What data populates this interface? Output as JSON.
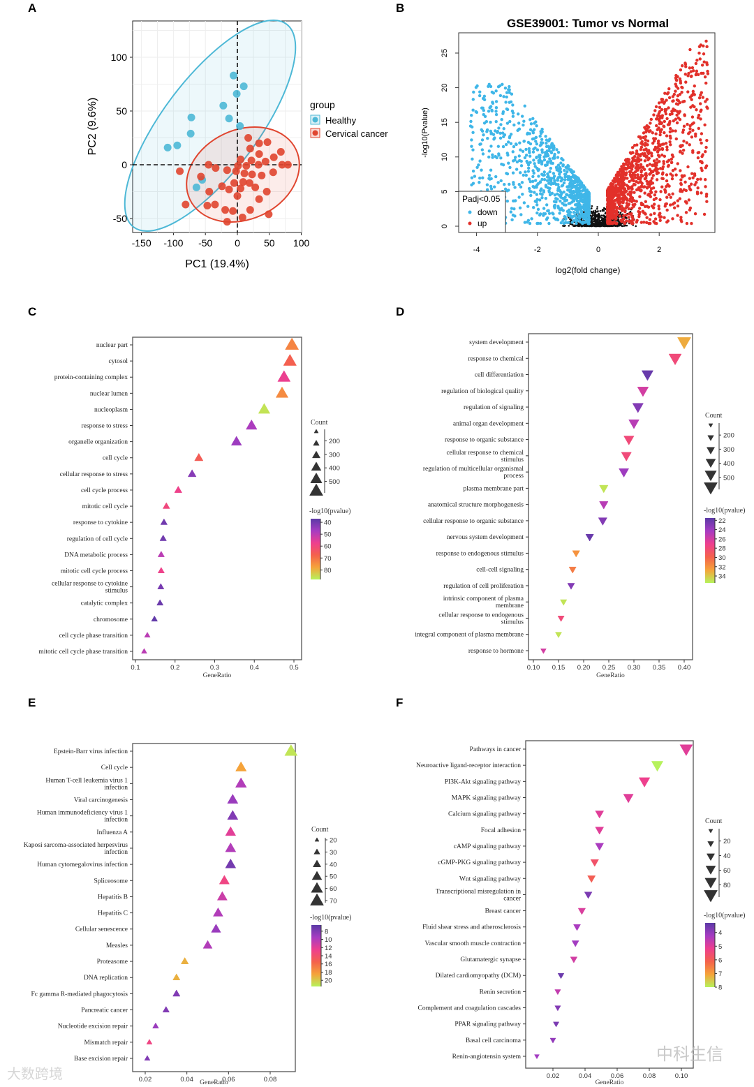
{
  "panel_letters": [
    "A",
    "B",
    "C",
    "D",
    "E",
    "F"
  ],
  "watermarks": {
    "left": "大数跨境",
    "right": "中科生信"
  },
  "colors": {
    "healthy": "#4db8d6",
    "cancer": "#e0452f",
    "down": "#3fb6e8",
    "up": "#e2302a",
    "ns": "#111111",
    "gradient": [
      "#5b3aa6",
      "#a63cc2",
      "#ee3f8e",
      "#f4624c",
      "#f5a33a",
      "#b6f25c"
    ]
  },
  "chart_data": [
    {
      "id": "A",
      "type": "scatter",
      "xlabel": "PC1 (19.4%)",
      "ylabel": "PC2 (9.6%)",
      "xlim": [
        -160,
        110
      ],
      "ylim": [
        -62,
        135
      ],
      "xticks": [
        -150,
        -100,
        -50,
        0,
        50,
        100
      ],
      "yticks": [
        -50,
        0,
        50,
        100
      ],
      "legend": {
        "title": "group",
        "entries": [
          "Healthy",
          "Cervical cancer"
        ],
        "placement": "right"
      },
      "series": [
        {
          "name": "Healthy",
          "points": [
            [
              -6,
              83
            ],
            [
              10,
              73
            ],
            [
              -1,
              66
            ],
            [
              -22,
              55
            ],
            [
              -13,
              43
            ],
            [
              -72,
              44
            ],
            [
              4,
              36
            ],
            [
              -73,
              29
            ],
            [
              -94,
              18
            ],
            [
              -109,
              16
            ],
            [
              -55,
              -14
            ],
            [
              -64,
              -21
            ]
          ]
        },
        {
          "name": "Cervical cancer",
          "points": [
            [
              17,
              25
            ],
            [
              34,
              20
            ],
            [
              47,
              21
            ],
            [
              20,
              15
            ],
            [
              68,
              12
            ],
            [
              34,
              10
            ],
            [
              57,
              7
            ],
            [
              5,
              5
            ],
            [
              22,
              4
            ],
            [
              70,
              0
            ],
            [
              1,
              -1
            ],
            [
              14,
              -1
            ],
            [
              33,
              0
            ],
            [
              44,
              3
            ],
            [
              79,
              0
            ],
            [
              -90,
              -6
            ],
            [
              -45,
              0
            ],
            [
              -34,
              -3
            ],
            [
              -16,
              -5
            ],
            [
              -2,
              -6
            ],
            [
              11,
              -8
            ],
            [
              23,
              -9
            ],
            [
              38,
              -10
            ],
            [
              56,
              -7
            ],
            [
              9,
              -16
            ],
            [
              19,
              -17
            ],
            [
              -57,
              -11
            ],
            [
              -5,
              -17
            ],
            [
              -24,
              -20
            ],
            [
              5,
              -22
            ],
            [
              -13,
              -23
            ],
            [
              28,
              -21
            ],
            [
              46,
              -25
            ],
            [
              -44,
              -25
            ],
            [
              34,
              -32
            ],
            [
              -81,
              -37
            ],
            [
              -47,
              -38
            ],
            [
              -19,
              -42
            ],
            [
              -7,
              -43
            ],
            [
              20,
              -42
            ],
            [
              49,
              -46
            ],
            [
              8,
              -49
            ],
            [
              -16,
              -53
            ],
            [
              -35,
              -37
            ],
            [
              0,
              -29
            ]
          ]
        }
      ]
    },
    {
      "id": "B",
      "type": "scatter",
      "title": "GSE39001: Tumor vs Normal",
      "xlabel": "log2(fold change)",
      "ylabel": "-log10(Pvalue)",
      "xlim": [
        -4.6,
        3.8
      ],
      "ylim": [
        -1,
        28
      ],
      "xticks": [
        -4,
        -2,
        0,
        2
      ],
      "yticks": [
        0,
        5,
        10,
        15,
        20,
        25
      ],
      "legend": {
        "title": "Padj<0.05",
        "entries": [
          "down",
          "up"
        ],
        "placement": "bottom-left"
      },
      "approx_counts": {
        "down": 900,
        "up": 1100,
        "not_significant": 700
      }
    },
    {
      "id": "C",
      "type": "scatter",
      "shape": "triangle-up",
      "xlabel": "GeneRatio",
      "xticks": [
        "0.1",
        "0.2",
        "0.3",
        "0.4",
        "0.5"
      ],
      "xlim": [
        0.09,
        0.52
      ],
      "count_legend": {
        "title": "Count",
        "ticks": [
          "200",
          "300",
          "400",
          "500"
        ]
      },
      "color_legend": {
        "title": "-log10(pvalue)",
        "ticks": [
          "40",
          "50",
          "60",
          "70",
          "80"
        ],
        "range": [
          37,
          88
        ]
      },
      "rows": [
        {
          "term": "nuclear part",
          "ratio": 0.495,
          "count": 560,
          "p": 73
        },
        {
          "term": "cytosol",
          "ratio": 0.49,
          "count": 540,
          "p": 67
        },
        {
          "term": "protein-containing complex",
          "ratio": 0.475,
          "count": 520,
          "p": 57
        },
        {
          "term": "nuclear lumen",
          "ratio": 0.47,
          "count": 500,
          "p": 74
        },
        {
          "term": "nucleoplasm",
          "ratio": 0.425,
          "count": 460,
          "p": 86
        },
        {
          "term": "response to stress",
          "ratio": 0.393,
          "count": 430,
          "p": 48
        },
        {
          "term": "organelle organization",
          "ratio": 0.355,
          "count": 400,
          "p": 46
        },
        {
          "term": "cell cycle",
          "ratio": 0.26,
          "count": 300,
          "p": 66
        },
        {
          "term": "cellular response to stress",
          "ratio": 0.243,
          "count": 280,
          "p": 43
        },
        {
          "term": "cell cycle process",
          "ratio": 0.208,
          "count": 240,
          "p": 58
        },
        {
          "term": "mitotic cell cycle",
          "ratio": 0.178,
          "count": 210,
          "p": 60
        },
        {
          "term": "response to cytokine",
          "ratio": 0.172,
          "count": 200,
          "p": 40
        },
        {
          "term": "regulation of cell cycle",
          "ratio": 0.17,
          "count": 195,
          "p": 40
        },
        {
          "term": "DNA metabolic process",
          "ratio": 0.165,
          "count": 190,
          "p": 50
        },
        {
          "term": "mitotic cell cycle process",
          "ratio": 0.165,
          "count": 190,
          "p": 58
        },
        {
          "term": "cellular response to cytokine\nstimulus",
          "ratio": 0.164,
          "count": 185,
          "p": 41
        },
        {
          "term": "catalytic complex",
          "ratio": 0.162,
          "count": 185,
          "p": 39
        },
        {
          "term": "chromosome",
          "ratio": 0.148,
          "count": 170,
          "p": 38
        },
        {
          "term": "cell cycle phase transition",
          "ratio": 0.13,
          "count": 150,
          "p": 50
        },
        {
          "term": "mitotic cell cycle phase transition",
          "ratio": 0.122,
          "count": 140,
          "p": 50
        }
      ]
    },
    {
      "id": "D",
      "type": "scatter",
      "shape": "triangle-down",
      "xlabel": "GeneRatio",
      "xticks": [
        "0.10",
        "0.15",
        "0.20",
        "0.25",
        "0.30",
        "0.35",
        "0.40"
      ],
      "xlim": [
        0.095,
        0.425
      ],
      "count_legend": {
        "title": "Count",
        "ticks": [
          "200",
          "300",
          "400",
          "500"
        ]
      },
      "color_legend": {
        "title": "-log10(pvalue)",
        "ticks": [
          "22",
          "24",
          "26",
          "28",
          "30",
          "32",
          "34"
        ],
        "range": [
          21.5,
          35.5
        ]
      },
      "rows": [
        {
          "term": "system development",
          "ratio": 0.4,
          "count": 560,
          "p": 33
        },
        {
          "term": "response to chemical",
          "ratio": 0.382,
          "count": 520,
          "p": 28
        },
        {
          "term": "cell differentiation",
          "ratio": 0.327,
          "count": 460,
          "p": 22
        },
        {
          "term": "regulation of biological quality",
          "ratio": 0.318,
          "count": 440,
          "p": 26
        },
        {
          "term": "regulation of signaling",
          "ratio": 0.308,
          "count": 430,
          "p": 23
        },
        {
          "term": "animal organ development",
          "ratio": 0.3,
          "count": 410,
          "p": 25
        },
        {
          "term": "response to organic substance",
          "ratio": 0.29,
          "count": 400,
          "p": 28
        },
        {
          "term": "cellular response to chemical\nstimulus",
          "ratio": 0.285,
          "count": 390,
          "p": 28
        },
        {
          "term": "regulation of multicellular organismal\nprocess",
          "ratio": 0.28,
          "count": 380,
          "p": 24
        },
        {
          "term": "plasma membrane part",
          "ratio": 0.24,
          "count": 320,
          "p": 35
        },
        {
          "term": "anatomical structure morphogenesis",
          "ratio": 0.24,
          "count": 320,
          "p": 25
        },
        {
          "term": "cellular response to organic substance",
          "ratio": 0.238,
          "count": 320,
          "p": 23
        },
        {
          "term": "nervous system development",
          "ratio": 0.212,
          "count": 280,
          "p": 22
        },
        {
          "term": "response to endogenous stimulus",
          "ratio": 0.185,
          "count": 250,
          "p": 32
        },
        {
          "term": "cell-cell signaling",
          "ratio": 0.178,
          "count": 240,
          "p": 31
        },
        {
          "term": "regulation of cell proliferation",
          "ratio": 0.175,
          "count": 235,
          "p": 23
        },
        {
          "term": "intrinsic component of plasma\nmembrane",
          "ratio": 0.16,
          "count": 210,
          "p": 35
        },
        {
          "term": "cellular response to endogenous\nstimulus",
          "ratio": 0.155,
          "count": 205,
          "p": 28
        },
        {
          "term": "integral component of plasma membrane",
          "ratio": 0.15,
          "count": 200,
          "p": 35
        },
        {
          "term": "response to hormone",
          "ratio": 0.12,
          "count": 160,
          "p": 26
        }
      ]
    },
    {
      "id": "E",
      "type": "scatter",
      "shape": "triangle-up",
      "xlabel": "GeneRatio",
      "xticks": [
        "0.02",
        "0.04",
        "0.06",
        "0.08"
      ],
      "xlim": [
        0.014,
        0.095
      ],
      "count_legend": {
        "title": "Count",
        "ticks": [
          "20",
          "30",
          "40",
          "50",
          "60",
          "70"
        ]
      },
      "color_legend": {
        "title": "-log10(pvalue)",
        "ticks": [
          "8",
          "10",
          "12",
          "14",
          "16",
          "18",
          "20"
        ],
        "range": [
          6.5,
          21.5
        ]
      },
      "rows": [
        {
          "term": "Epstein-Barr virus infection",
          "ratio": 0.09,
          "count": 72,
          "p": 21
        },
        {
          "term": "Cell cycle",
          "ratio": 0.066,
          "count": 58,
          "p": 18.5
        },
        {
          "term": "Human T-cell leukemia virus 1\ninfection",
          "ratio": 0.066,
          "count": 60,
          "p": 10
        },
        {
          "term": "Viral carcinogenesis",
          "ratio": 0.062,
          "count": 56,
          "p": 9
        },
        {
          "term": "Human immunodeficiency virus 1\ninfection",
          "ratio": 0.062,
          "count": 56,
          "p": 8
        },
        {
          "term": "Influenza A",
          "ratio": 0.061,
          "count": 54,
          "p": 12
        },
        {
          "term": "Kaposi sarcoma-associated herpesvirus\ninfection",
          "ratio": 0.061,
          "count": 55,
          "p": 10
        },
        {
          "term": "Human cytomegalovirus infection",
          "ratio": 0.061,
          "count": 55,
          "p": 7.5
        },
        {
          "term": "Spliceosome",
          "ratio": 0.058,
          "count": 52,
          "p": 13
        },
        {
          "term": "Hepatitis B",
          "ratio": 0.057,
          "count": 51,
          "p": 11
        },
        {
          "term": "Hepatitis C",
          "ratio": 0.055,
          "count": 50,
          "p": 10
        },
        {
          "term": "Cellular senescence",
          "ratio": 0.054,
          "count": 48,
          "p": 9
        },
        {
          "term": "Measles",
          "ratio": 0.05,
          "count": 45,
          "p": 10
        },
        {
          "term": "Proteasome",
          "ratio": 0.039,
          "count": 32,
          "p": 19
        },
        {
          "term": "DNA replication",
          "ratio": 0.035,
          "count": 30,
          "p": 19
        },
        {
          "term": "Fc gamma R-mediated phagocytosis",
          "ratio": 0.035,
          "count": 31,
          "p": 8
        },
        {
          "term": "Pancreatic cancer",
          "ratio": 0.03,
          "count": 26,
          "p": 8
        },
        {
          "term": "Nucleotide excision repair",
          "ratio": 0.025,
          "count": 22,
          "p": 9
        },
        {
          "term": "Mismatch repair",
          "ratio": 0.022,
          "count": 18,
          "p": 13
        },
        {
          "term": "Base excision repair",
          "ratio": 0.021,
          "count": 18,
          "p": 8
        }
      ]
    },
    {
      "id": "F",
      "type": "scatter",
      "shape": "triangle-down",
      "xlabel": "GeneRatio",
      "xticks": [
        "0.02",
        "0.04",
        "0.06",
        "0.08",
        "0.10"
      ],
      "xlim": [
        0.003,
        0.111
      ],
      "count_legend": {
        "title": "Count",
        "ticks": [
          "20",
          "40",
          "60",
          "80"
        ]
      },
      "color_legend": {
        "title": "-log10(pvalue)",
        "ticks": [
          "4",
          "5",
          "6",
          "7",
          "8"
        ],
        "range": [
          3.3,
          8.0
        ]
      },
      "rows": [
        {
          "term": "Pathways in cancer",
          "ratio": 0.103,
          "count": 92,
          "p": 5
        },
        {
          "term": "Neuroactive ligand-receptor interaction",
          "ratio": 0.085,
          "count": 80,
          "p": 8
        },
        {
          "term": "PI3K-Akt signaling pathway",
          "ratio": 0.077,
          "count": 74,
          "p": 5.2
        },
        {
          "term": "MAPK signaling pathway",
          "ratio": 0.067,
          "count": 64,
          "p": 5
        },
        {
          "term": "Calcium signaling pathway",
          "ratio": 0.049,
          "count": 48,
          "p": 5
        },
        {
          "term": "Focal adhesion",
          "ratio": 0.049,
          "count": 48,
          "p": 5
        },
        {
          "term": "cAMP signaling pathway",
          "ratio": 0.049,
          "count": 47,
          "p": 4.3
        },
        {
          "term": "cGMP-PKG signaling pathway",
          "ratio": 0.046,
          "count": 44,
          "p": 5.7
        },
        {
          "term": "Wnt signaling pathway",
          "ratio": 0.044,
          "count": 42,
          "p": 6
        },
        {
          "term": "Transcriptional misregulation in\ncancer",
          "ratio": 0.042,
          "count": 40,
          "p": 3.7
        },
        {
          "term": "Breast cancer",
          "ratio": 0.038,
          "count": 37,
          "p": 4.9
        },
        {
          "term": "Fluid shear stress and atherosclerosis",
          "ratio": 0.035,
          "count": 34,
          "p": 4.3
        },
        {
          "term": "Vascular smooth muscle contraction",
          "ratio": 0.034,
          "count": 33,
          "p": 4.2
        },
        {
          "term": "Glutamatergic synapse",
          "ratio": 0.033,
          "count": 32,
          "p": 4.8
        },
        {
          "term": "Dilated cardiomyopathy (DCM)",
          "ratio": 0.025,
          "count": 25,
          "p": 3.5
        },
        {
          "term": "Renin secretion",
          "ratio": 0.023,
          "count": 22,
          "p": 4.6
        },
        {
          "term": "Complement and coagulation cascades",
          "ratio": 0.023,
          "count": 22,
          "p": 3.8
        },
        {
          "term": "PPAR signaling pathway",
          "ratio": 0.022,
          "count": 21,
          "p": 3.7
        },
        {
          "term": "Basal cell carcinoma",
          "ratio": 0.02,
          "count": 20,
          "p": 4
        },
        {
          "term": "Renin-angiotensin system",
          "ratio": 0.01,
          "count": 12,
          "p": 4.2
        }
      ]
    }
  ]
}
